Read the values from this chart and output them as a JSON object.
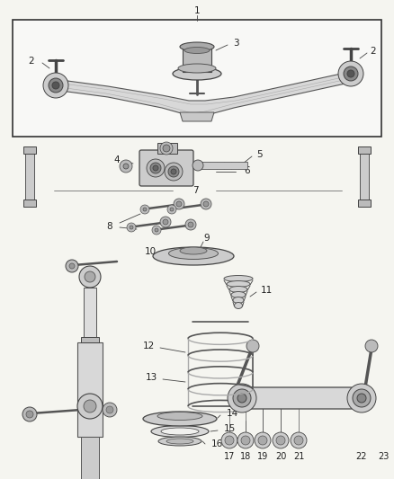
{
  "background_color": "#f5f5f0",
  "figsize": [
    4.38,
    5.33
  ],
  "dpi": 100,
  "line_color": "#333333",
  "part_color": "#888888",
  "fill_light": "#e0e0e0",
  "fill_mid": "#cccccc",
  "fill_dark": "#aaaaaa"
}
